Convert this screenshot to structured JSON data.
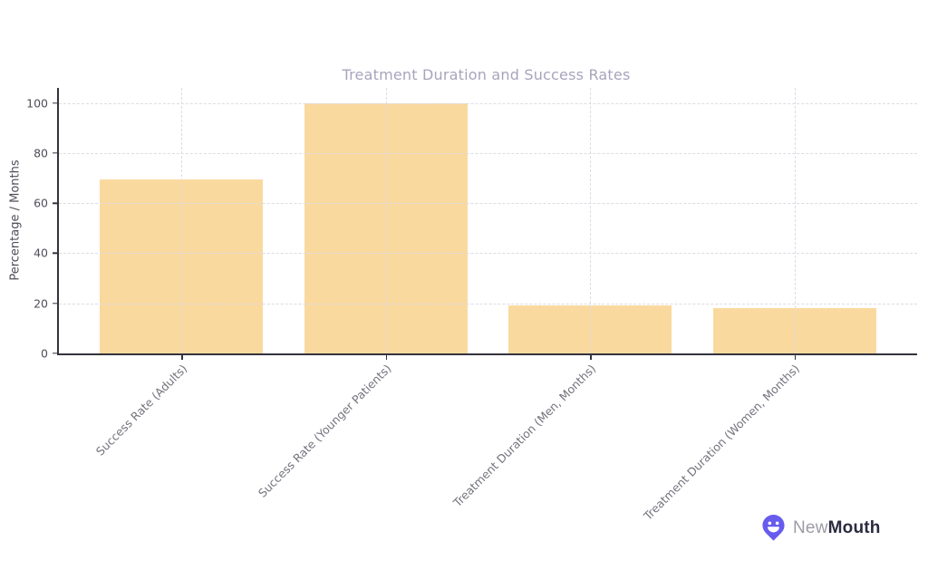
{
  "page": {
    "background": "#ffffff"
  },
  "chart_data": {
    "type": "bar",
    "title": "Treatment Duration and Success Rates",
    "xlabel": "",
    "ylabel": "Percentage / Months",
    "categories": [
      "Success Rate (Adults)",
      "Success Rate (Younger Patients)",
      "Treatment Duration (Men, Months)",
      "Treatment Duration (Women, Months)"
    ],
    "values": [
      69.4,
      100,
      19,
      18
    ],
    "yticks": [
      0,
      20,
      40,
      60,
      80,
      100
    ],
    "ylim": [
      0,
      106
    ],
    "grid": "dashed horizontal at yticks and vertical at bar centers, drawn over bars",
    "legend_position": "none",
    "bar_color": "#FAD99F",
    "title_color": "#A8A4BC",
    "axis_color": "#33333D",
    "gridline_color": "#DCDCE4",
    "ytick_label_color": "#4E4E58",
    "xtick_label_color": "#73737D",
    "ylabel_color": "#4E4E58"
  },
  "branding": {
    "logo_light": "New",
    "logo_bold": "Mouth",
    "icon": "pin-smiley-icon",
    "icon_color": "#685CEE",
    "logo_light_color": "#9C9CA6",
    "logo_bold_color": "#2B2B40"
  }
}
